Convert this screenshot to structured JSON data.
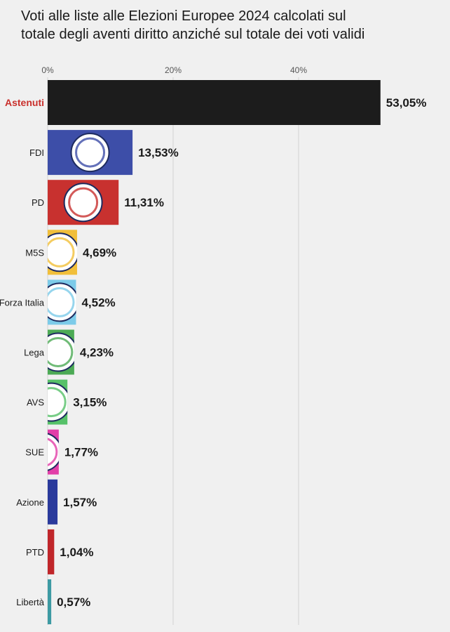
{
  "chart_data": {
    "type": "bar",
    "orientation": "horizontal",
    "title_lines": [
      "Voti alle liste alle Elezioni Europee 2024 calcolati sul",
      "totale degli aventi diritto anziché sul totale dei voti validi"
    ],
    "categories": [
      "Astenuti",
      "FDI",
      "PD",
      "M5S",
      "Forza Italia",
      "Lega",
      "AVS",
      "SUE",
      "Azione",
      "PTD",
      "Libertà"
    ],
    "values": [
      53.05,
      13.53,
      11.31,
      4.69,
      4.52,
      4.23,
      3.15,
      1.77,
      1.57,
      1.04,
      0.57
    ],
    "value_labels": [
      "53,05%",
      "13,53%",
      "11,31%",
      "4,69%",
      "4,52%",
      "4,23%",
      "3,15%",
      "1,77%",
      "1,57%",
      "1,04%",
      "0,57%"
    ],
    "colors": [
      "#1c1c1c",
      "#3d4ea8",
      "#c8312f",
      "#f1bf3a",
      "#7ccbe9",
      "#4caa55",
      "#56c169",
      "#e23fa8",
      "#2a3a9c",
      "#c0262a",
      "#3d9aa3"
    ],
    "highlight_category": "Astenuti",
    "xticks": [
      0,
      20,
      40
    ],
    "xtick_labels": [
      "0%",
      "20%",
      "40%"
    ],
    "xlim": [
      0,
      60
    ],
    "grid": "vertical",
    "logo_icons": [
      "",
      "fratelli-d-italia-logo-icon",
      "pd-logo-icon",
      "m5s-logo-icon",
      "forza-italia-logo-icon",
      "lega-logo-icon",
      "avs-logo-icon",
      "sue-logo-icon",
      "",
      "",
      ""
    ]
  }
}
